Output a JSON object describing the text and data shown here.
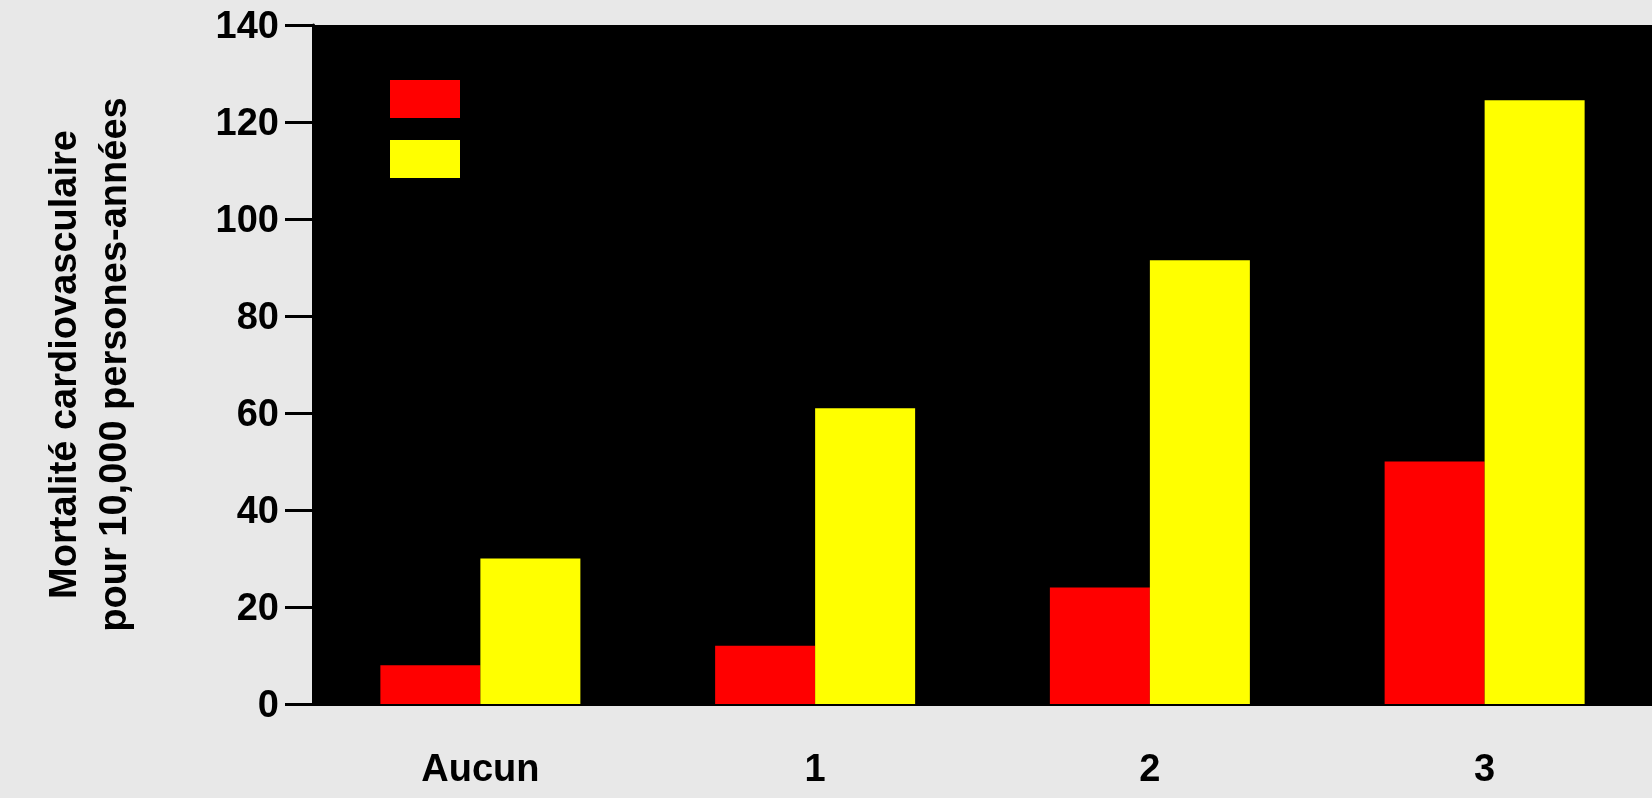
{
  "chart_data": {
    "type": "bar",
    "ylabel": "Mortalité cardiovasculaire\npour 10,000 persones-années",
    "categories": [
      "Aucun",
      "1",
      "2",
      "3"
    ],
    "series": [
      {
        "color": "#ff0000",
        "values": [
          8,
          12,
          24,
          50
        ]
      },
      {
        "color": "#ffff00",
        "values": [
          30,
          61,
          91.5,
          124.5
        ]
      }
    ],
    "ylim": [
      0,
      140
    ],
    "yticks": [
      0,
      20,
      40,
      60,
      80,
      100,
      120,
      140
    ],
    "grid": false
  }
}
